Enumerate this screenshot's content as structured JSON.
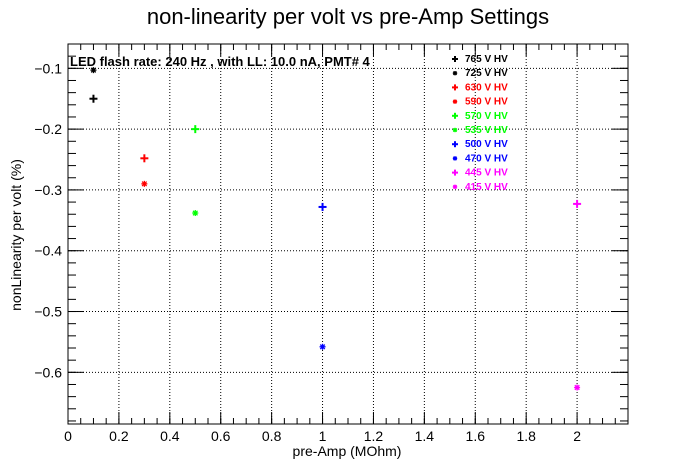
{
  "chart_data": {
    "type": "scatter",
    "title": "non-linearity per volt vs pre-Amp Settings",
    "xlabel": "pre-Amp (MOhm)",
    "ylabel": "nonLinearity per volt (%)",
    "annotation": "LED flash rate: 240 Hz , with LL: 10.0 nA, PMT# 4",
    "xlim": [
      0,
      2.2
    ],
    "ylim": [
      -0.685,
      -0.06
    ],
    "x_ticks": [
      0,
      0.2,
      0.4,
      0.6,
      0.8,
      1,
      1.2,
      1.4,
      1.6,
      1.8,
      2
    ],
    "x_tick_labels": [
      "0",
      "0.2",
      "0.4",
      "0.6",
      "0.8",
      "1",
      "1.2",
      "1.4",
      "1.6",
      "1.8",
      "2"
    ],
    "y_ticks": [
      -0.1,
      -0.2,
      -0.3,
      -0.4,
      -0.5,
      -0.6
    ],
    "y_tick_labels": [
      "−0.1",
      "−0.2",
      "−0.3",
      "−0.4",
      "−0.5",
      "−0.6"
    ],
    "grid": true,
    "legend_position": "top-right",
    "series": [
      {
        "name": "765 V HV",
        "color": "#000000",
        "marker": "plus",
        "x": [
          0.1
        ],
        "y": [
          -0.15
        ]
      },
      {
        "name": "725 V HV",
        "color": "#000000",
        "marker": "star",
        "x": [
          0.1
        ],
        "y": [
          -0.103
        ]
      },
      {
        "name": "630 V HV",
        "color": "#ff0000",
        "marker": "plus",
        "x": [
          0.3
        ],
        "y": [
          -0.248
        ]
      },
      {
        "name": "590 V HV",
        "color": "#ff0000",
        "marker": "star",
        "x": [
          0.3
        ],
        "y": [
          -0.29
        ]
      },
      {
        "name": "570 V HV",
        "color": "#00ff00",
        "marker": "plus",
        "x": [
          0.5
        ],
        "y": [
          -0.2
        ]
      },
      {
        "name": "535 V HV",
        "color": "#00ff00",
        "marker": "star",
        "x": [
          0.5
        ],
        "y": [
          -0.338
        ]
      },
      {
        "name": "500 V HV",
        "color": "#0000ff",
        "marker": "plus",
        "x": [
          1
        ],
        "y": [
          -0.328
        ]
      },
      {
        "name": "470 V HV",
        "color": "#0000ff",
        "marker": "star",
        "x": [
          1
        ],
        "y": [
          -0.558
        ]
      },
      {
        "name": "445 V HV",
        "color": "#ff00ff",
        "marker": "plus",
        "x": [
          2
        ],
        "y": [
          -0.323
        ]
      },
      {
        "name": "415 V HV",
        "color": "#ff00ff",
        "marker": "star",
        "x": [
          2
        ],
        "y": [
          -0.625
        ]
      }
    ]
  }
}
